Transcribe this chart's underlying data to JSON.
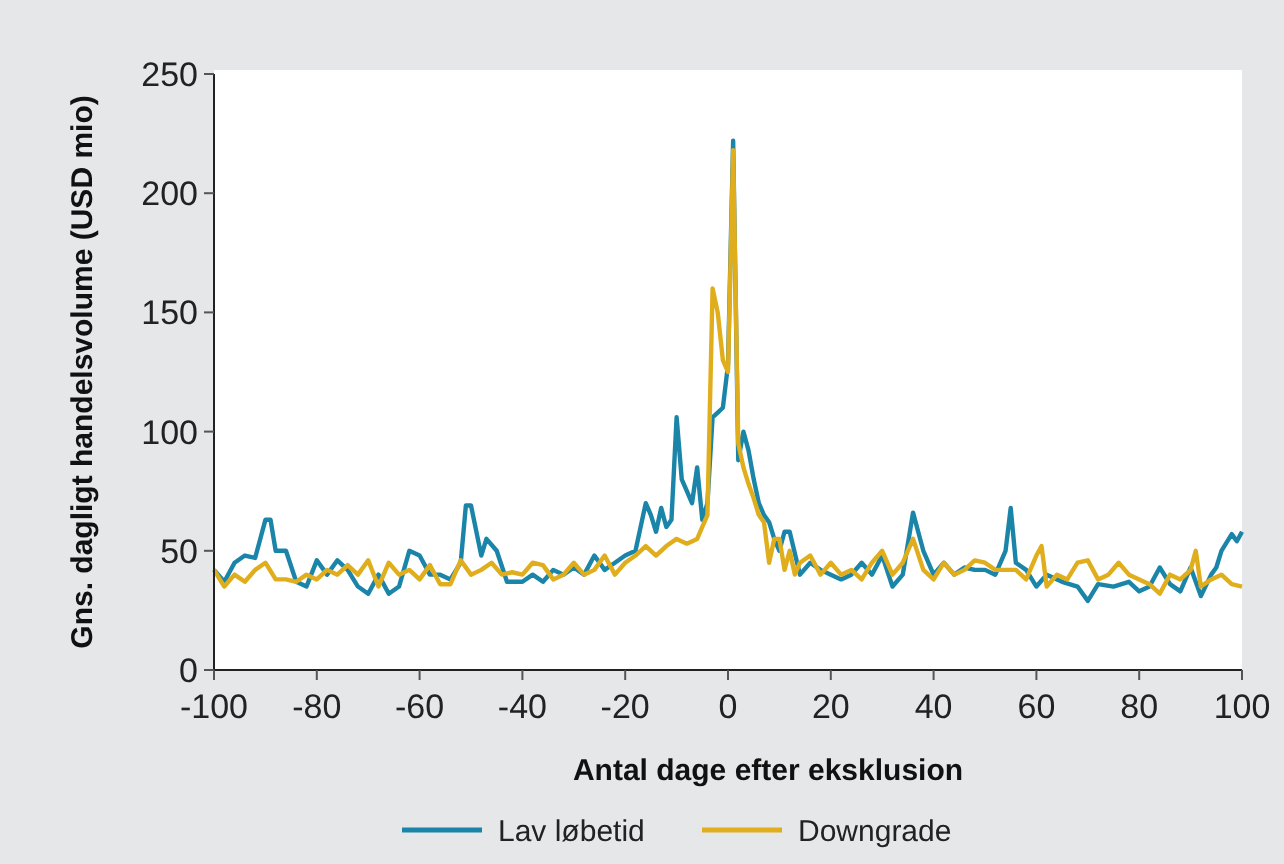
{
  "chart_data": {
    "type": "line",
    "xlabel": "Antal dage efter eksklusion",
    "ylabel": "Gns. dagligt handelsvolume (USD mio)",
    "xlim": [
      -100,
      100
    ],
    "ylim": [
      0,
      250
    ],
    "xticks": [
      -100,
      -80,
      -60,
      -40,
      -20,
      0,
      20,
      40,
      60,
      80,
      100
    ],
    "yticks": [
      0,
      50,
      100,
      150,
      200,
      250
    ],
    "grid": false,
    "legend": "bottom",
    "series": [
      {
        "name": "Lav løbetid",
        "color": "#1a85a8",
        "x": [
          -100,
          -98,
          -96,
          -94,
          -92,
          -90,
          -89,
          -88,
          -86,
          -84,
          -82,
          -80,
          -78,
          -76,
          -74,
          -72,
          -70,
          -68,
          -66,
          -64,
          -62,
          -60,
          -58,
          -56,
          -54,
          -52,
          -51,
          -50,
          -48,
          -47,
          -45,
          -43,
          -40,
          -38,
          -36,
          -34,
          -32,
          -30,
          -28,
          -26,
          -24,
          -22,
          -20,
          -18,
          -16,
          -15,
          -14,
          -13,
          -12,
          -11,
          -10,
          -9,
          -8,
          -7,
          -6,
          -5,
          -4,
          -3,
          -2,
          -1,
          0,
          1,
          2,
          3,
          4,
          5,
          6,
          7,
          8,
          9,
          10,
          11,
          12,
          14,
          16,
          18,
          20,
          22,
          24,
          26,
          28,
          30,
          32,
          34,
          36,
          38,
          40,
          42,
          44,
          46,
          48,
          50,
          52,
          54,
          55,
          56,
          58,
          60,
          62,
          65,
          68,
          70,
          72,
          75,
          78,
          80,
          82,
          84,
          86,
          88,
          90,
          92,
          94,
          95,
          96,
          98,
          99,
          100
        ],
        "values": [
          42,
          37,
          45,
          48,
          47,
          63,
          63,
          50,
          50,
          37,
          35,
          46,
          40,
          46,
          42,
          35,
          32,
          40,
          32,
          35,
          50,
          48,
          40,
          40,
          38,
          45,
          69,
          69,
          48,
          55,
          50,
          37,
          37,
          40,
          37,
          42,
          40,
          43,
          40,
          48,
          42,
          45,
          48,
          50,
          70,
          65,
          58,
          68,
          60,
          63,
          106,
          80,
          75,
          70,
          85,
          63,
          70,
          106,
          108,
          110,
          128,
          222,
          88,
          100,
          92,
          80,
          70,
          65,
          62,
          55,
          50,
          58,
          58,
          40,
          45,
          42,
          40,
          38,
          40,
          45,
          40,
          48,
          35,
          40,
          66,
          50,
          40,
          45,
          40,
          43,
          42,
          42,
          40,
          50,
          68,
          45,
          42,
          35,
          40,
          37,
          35,
          29,
          36,
          35,
          37,
          33,
          35,
          43,
          36,
          33,
          43,
          31,
          40,
          43,
          50,
          57,
          54,
          58
        ]
      },
      {
        "name": "Downgrade",
        "color": "#e0ae1c",
        "x": [
          -100,
          -98,
          -96,
          -94,
          -92,
          -90,
          -88,
          -86,
          -84,
          -82,
          -80,
          -78,
          -76,
          -74,
          -72,
          -70,
          -68,
          -66,
          -64,
          -62,
          -60,
          -58,
          -56,
          -54,
          -52,
          -50,
          -48,
          -46,
          -44,
          -42,
          -40,
          -38,
          -36,
          -34,
          -32,
          -30,
          -28,
          -26,
          -24,
          -22,
          -20,
          -18,
          -16,
          -14,
          -12,
          -10,
          -8,
          -6,
          -5,
          -4,
          -3,
          -2,
          -1,
          0,
          1,
          2,
          3,
          4,
          5,
          6,
          7,
          8,
          9,
          10,
          11,
          12,
          13,
          14,
          16,
          18,
          20,
          22,
          24,
          26,
          28,
          30,
          32,
          34,
          36,
          38,
          40,
          42,
          44,
          46,
          48,
          50,
          52,
          54,
          56,
          58,
          60,
          61,
          62,
          64,
          66,
          68,
          70,
          72,
          74,
          76,
          78,
          80,
          82,
          84,
          86,
          88,
          90,
          91,
          92,
          94,
          96,
          98,
          100
        ],
        "values": [
          42,
          35,
          40,
          37,
          42,
          45,
          38,
          38,
          37,
          40,
          38,
          42,
          40,
          44,
          40,
          46,
          35,
          45,
          40,
          42,
          38,
          44,
          36,
          36,
          46,
          40,
          42,
          45,
          40,
          41,
          40,
          45,
          44,
          38,
          40,
          45,
          40,
          42,
          48,
          40,
          45,
          48,
          52,
          48,
          52,
          55,
          53,
          55,
          60,
          65,
          160,
          150,
          130,
          125,
          218,
          95,
          85,
          78,
          72,
          65,
          62,
          45,
          55,
          55,
          42,
          50,
          40,
          45,
          48,
          40,
          45,
          40,
          42,
          38,
          45,
          50,
          40,
          45,
          55,
          42,
          38,
          45,
          40,
          42,
          46,
          45,
          42,
          42,
          42,
          38,
          48,
          52,
          35,
          40,
          38,
          45,
          46,
          38,
          40,
          45,
          40,
          38,
          36,
          32,
          40,
          38,
          42,
          50,
          35,
          38,
          40,
          36,
          35
        ]
      }
    ]
  }
}
